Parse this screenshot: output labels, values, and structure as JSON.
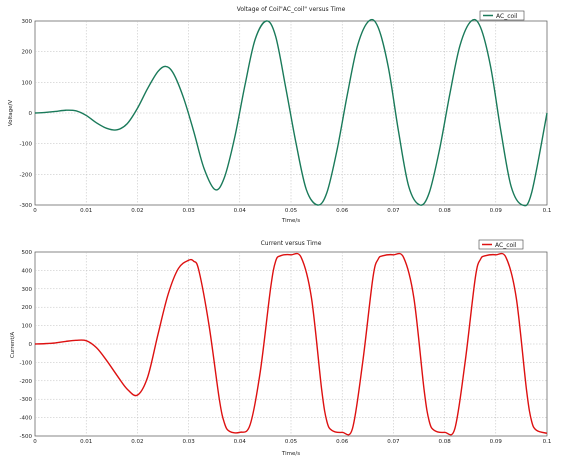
{
  "chart_data": [
    {
      "type": "line",
      "title": "Voltage of Coil\"AC_coil\" versus Time",
      "xlabel": "Time/s",
      "ylabel": "Voltage/V",
      "xlim": [
        0,
        0.1
      ],
      "ylim": [
        -300,
        300
      ],
      "x_ticks": [
        "0",
        "0.01",
        "0.02",
        "0.03",
        "0.04",
        "0.05",
        "0.06",
        "0.07",
        "0.08",
        "0.09",
        "0.1"
      ],
      "y_ticks": [
        "300",
        "200",
        "100",
        "0",
        "-100",
        "-200",
        "-300"
      ],
      "grid": true,
      "legend_position": "top-right",
      "colors": {
        "series": "#1a7a5a"
      },
      "series": [
        {
          "name": "AC_coil",
          "x": [
            0,
            0.002,
            0.004,
            0.006,
            0.008,
            0.01,
            0.012,
            0.014,
            0.016,
            0.018,
            0.02,
            0.022,
            0.024,
            0.0255,
            0.027,
            0.029,
            0.031,
            0.033,
            0.0352,
            0.037,
            0.039,
            0.041,
            0.043,
            0.0452,
            0.047,
            0.049,
            0.051,
            0.053,
            0.0552,
            0.057,
            0.059,
            0.061,
            0.063,
            0.0652,
            0.067,
            0.069,
            0.071,
            0.073,
            0.0752,
            0.077,
            0.079,
            0.081,
            0.083,
            0.0852,
            0.087,
            0.089,
            0.091,
            0.093,
            0.0952,
            0.097,
            0.1
          ],
          "y": [
            0,
            2,
            5,
            9,
            7,
            -8,
            -32,
            -50,
            -55,
            -35,
            15,
            80,
            135,
            152,
            130,
            50,
            -60,
            -180,
            -250,
            -210,
            -80,
            90,
            240,
            300,
            250,
            80,
            -100,
            -250,
            -300,
            -260,
            -120,
            60,
            220,
            300,
            280,
            150,
            -60,
            -240,
            -300,
            -260,
            -120,
            60,
            220,
            300,
            280,
            150,
            -60,
            -240,
            -300,
            -260,
            0
          ]
        }
      ]
    },
    {
      "type": "line",
      "title": "Current versus Time",
      "xlabel": "Time/s",
      "ylabel": "Current/A",
      "xlim": [
        0,
        0.1
      ],
      "ylim": [
        -500,
        500
      ],
      "x_ticks": [
        "0",
        "0.01",
        "0.02",
        "0.03",
        "0.04",
        "0.05",
        "0.06",
        "0.07",
        "0.08",
        "0.09",
        "0.1"
      ],
      "y_ticks": [
        "500",
        "400",
        "300",
        "200",
        "100",
        "0",
        "-100",
        "-200",
        "-300",
        "-400",
        "-500"
      ],
      "grid": true,
      "legend_position": "top-right",
      "colors": {
        "series": "#dd1111"
      },
      "series": [
        {
          "name": "AC_coil",
          "x": [
            0,
            0.002,
            0.004,
            0.006,
            0.008,
            0.01,
            0.012,
            0.014,
            0.016,
            0.018,
            0.02,
            0.022,
            0.024,
            0.026,
            0.028,
            0.03,
            0.031,
            0.032,
            0.034,
            0.036,
            0.037,
            0.038,
            0.04,
            0.042,
            0.044,
            0.046,
            0.047,
            0.048,
            0.05,
            0.052,
            0.054,
            0.056,
            0.057,
            0.058,
            0.06,
            0.062,
            0.064,
            0.066,
            0.067,
            0.068,
            0.07,
            0.072,
            0.074,
            0.076,
            0.077,
            0.078,
            0.08,
            0.082,
            0.084,
            0.086,
            0.087,
            0.088,
            0.09,
            0.092,
            0.094,
            0.096,
            0.097,
            0.098,
            0.1
          ],
          "y": [
            0,
            2,
            6,
            14,
            20,
            18,
            -20,
            -90,
            -170,
            -245,
            -278,
            -180,
            50,
            270,
            410,
            455,
            450,
            400,
            100,
            -300,
            -430,
            -475,
            -480,
            -440,
            -150,
            300,
            450,
            480,
            485,
            470,
            250,
            -250,
            -420,
            -470,
            -480,
            -460,
            -100,
            360,
            460,
            480,
            485,
            470,
            250,
            -250,
            -420,
            -470,
            -480,
            -460,
            -100,
            360,
            460,
            480,
            485,
            470,
            250,
            -250,
            -420,
            -470,
            -485
          ]
        }
      ]
    }
  ]
}
